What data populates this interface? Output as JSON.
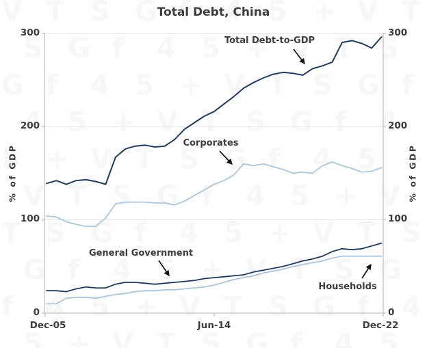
{
  "title": "Total Debt, China",
  "y_axis": {
    "label": "% of GDP",
    "ticks": [
      "300",
      "200",
      "100",
      "0"
    ]
  },
  "x_axis": {
    "ticks": [
      "Dec-05",
      "Jun-14",
      "Dec-22"
    ]
  },
  "annotations": {
    "total": "Total Debt-to-GDP",
    "corporates": "Corporates",
    "government": "General Government",
    "households": "Households"
  },
  "colors": {
    "navy": "#1e3a5f",
    "light_blue": "#a9c6dd",
    "grid": "#e3e3e3",
    "axis": "#bfbfbf",
    "text": "#3d3d3d",
    "arrow": "#111111",
    "watermark": "#666666"
  },
  "watermark_glyphs": [
    "V",
    "T",
    "S",
    "G",
    "f",
    "4",
    "5",
    "+"
  ],
  "chart_data": {
    "type": "line",
    "title": "Total Debt, China",
    "xlabel": "",
    "ylabel": "% of GDP",
    "ylim": [
      0,
      300
    ],
    "y_ticks": [
      0,
      100,
      200,
      300
    ],
    "grid": "horizontal",
    "legend": "inline-annotations",
    "x": [
      "Dec-05",
      "Jun-06",
      "Dec-06",
      "Jun-07",
      "Dec-07",
      "Jun-08",
      "Dec-08",
      "Jun-09",
      "Dec-09",
      "Jun-10",
      "Dec-10",
      "Jun-11",
      "Dec-11",
      "Jun-12",
      "Dec-12",
      "Jun-13",
      "Dec-13",
      "Jun-14",
      "Dec-14",
      "Jun-15",
      "Dec-15",
      "Jun-16",
      "Dec-16",
      "Jun-17",
      "Dec-17",
      "Jun-18",
      "Dec-18",
      "Jun-19",
      "Dec-19",
      "Jun-20",
      "Dec-20",
      "Jun-21",
      "Dec-21",
      "Jun-22",
      "Dec-22"
    ],
    "series": [
      {
        "name": "Total Debt-to-GDP",
        "color_key": "navy",
        "values": [
          139,
          142,
          138,
          142,
          143,
          141,
          138,
          167,
          176,
          179,
          180,
          178,
          179,
          186,
          197,
          204,
          211,
          216,
          224,
          232,
          241,
          247,
          252,
          256,
          258,
          257,
          255,
          262,
          265,
          269,
          290,
          292,
          289,
          284,
          296
        ]
      },
      {
        "name": "Corporates",
        "color_key": "light_blue",
        "values": [
          104,
          103,
          98,
          95,
          93,
          93,
          102,
          117,
          119,
          119,
          119,
          118,
          118,
          116,
          120,
          126,
          132,
          138,
          142,
          148,
          160,
          158,
          160,
          157,
          154,
          150,
          151,
          150,
          158,
          162,
          158,
          155,
          151,
          152,
          156
        ]
      },
      {
        "name": "General Government",
        "color_key": "navy",
        "values": [
          24,
          24,
          23,
          26,
          28,
          27,
          27,
          31,
          33,
          33,
          32,
          31,
          32,
          33,
          34,
          35,
          37,
          38,
          39,
          40,
          41,
          44,
          46,
          48,
          50,
          53,
          56,
          58,
          61,
          66,
          69,
          68,
          69,
          72,
          75
        ]
      },
      {
        "name": "Households",
        "color_key": "light_blue",
        "values": [
          10,
          10,
          16,
          17,
          17,
          16,
          18,
          20,
          21,
          23,
          24,
          24,
          25,
          25,
          26,
          27,
          28,
          30,
          33,
          36,
          38,
          40,
          43,
          45,
          47,
          50,
          52,
          54,
          56,
          59,
          61,
          61,
          61,
          61,
          61
        ]
      }
    ]
  }
}
